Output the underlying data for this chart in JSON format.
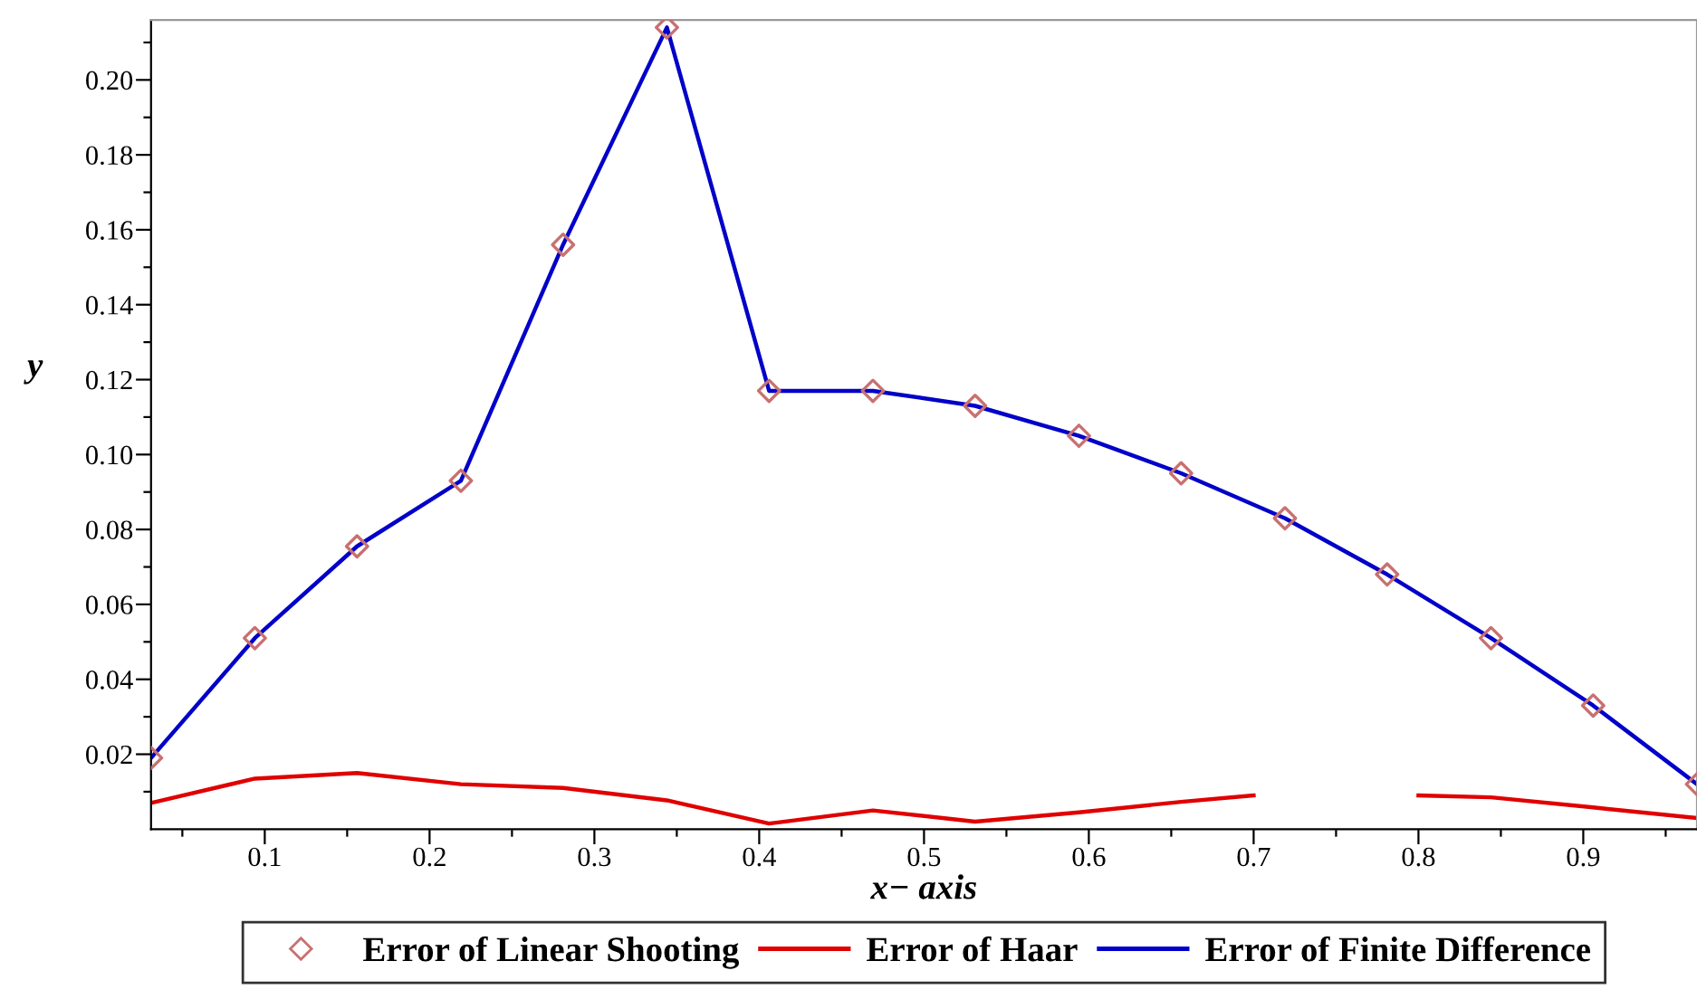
{
  "chart_data": {
    "type": "line",
    "xlabel": "x− axis",
    "ylabel": "y",
    "xlim": [
      0.031,
      0.969
    ],
    "ylim": [
      0,
      0.216
    ],
    "xticks": [
      {
        "value": 0.05,
        "label": null
      },
      0.1,
      {
        "value": 0.15,
        "label": null
      },
      0.2,
      {
        "value": 0.25,
        "label": null
      },
      0.3,
      {
        "value": 0.35,
        "label": null
      },
      0.4,
      {
        "value": 0.45,
        "label": null
      },
      0.5,
      {
        "value": 0.55,
        "label": null
      },
      0.6,
      {
        "value": 0.65,
        "label": null
      },
      0.7,
      {
        "value": 0.75,
        "label": null
      },
      0.8,
      {
        "value": 0.85,
        "label": null
      },
      0.9,
      {
        "value": 0.95,
        "label": null
      }
    ],
    "yticks": [
      {
        "value": 0.01,
        "label": null
      },
      {
        "value": 0.02,
        "label": "0.02"
      },
      {
        "value": 0.03,
        "label": null
      },
      {
        "value": 0.04,
        "label": "0.04"
      },
      {
        "value": 0.05,
        "label": null
      },
      {
        "value": 0.06,
        "label": "0.06"
      },
      {
        "value": 0.07,
        "label": null
      },
      {
        "value": 0.08,
        "label": "0.08"
      },
      {
        "value": 0.09,
        "label": null
      },
      {
        "value": 0.1,
        "label": "0.10"
      },
      {
        "value": 0.11,
        "label": null
      },
      {
        "value": 0.12,
        "label": "0.12"
      },
      {
        "value": 0.13,
        "label": null
      },
      {
        "value": 0.14,
        "label": "0.14"
      },
      {
        "value": 0.15,
        "label": null
      },
      {
        "value": 0.16,
        "label": "0.16"
      },
      {
        "value": 0.17,
        "label": null
      },
      {
        "value": 0.18,
        "label": "0.18"
      },
      {
        "value": 0.19,
        "label": null
      },
      {
        "value": 0.2,
        "label": "0.20"
      },
      {
        "value": 0.21,
        "label": null
      }
    ],
    "grid": false,
    "legend": "bottom",
    "series": [
      {
        "name": "Error of Linear Shooting",
        "type": "scatter",
        "marker": "diamond",
        "color": "#c87070",
        "x": [
          0.031,
          0.094,
          0.156,
          0.219,
          0.281,
          0.344,
          0.406,
          0.469,
          0.531,
          0.594,
          0.656,
          0.719,
          0.781,
          0.844,
          0.906,
          0.969
        ],
        "values": [
          0.019,
          0.051,
          0.0755,
          0.093,
          0.156,
          0.214,
          0.117,
          0.117,
          0.113,
          0.105,
          0.095,
          0.083,
          0.068,
          0.051,
          0.033,
          0.012
        ]
      },
      {
        "name": "Error of Haar",
        "color": "#e00000",
        "line_style": "solid",
        "x": [
          0.031,
          0.094,
          0.156,
          0.219,
          0.281,
          0.344,
          0.406,
          0.469,
          0.531,
          0.594,
          0.656,
          0.7,
          0.75,
          0.8,
          0.844,
          0.906,
          0.969
        ],
        "values": [
          0.007,
          0.0135,
          0.015,
          0.012,
          0.011,
          0.0077,
          0.0015,
          0.005,
          0.002,
          0.0045,
          0.0073,
          0.009,
          null,
          0.009,
          0.0085,
          0.0058,
          0.003
        ]
      },
      {
        "name": "Error of Finite Difference",
        "color": "#0000c8",
        "line_style": "solid",
        "x": [
          0.031,
          0.094,
          0.156,
          0.219,
          0.281,
          0.344,
          0.406,
          0.469,
          0.531,
          0.594,
          0.656,
          0.719,
          0.781,
          0.844,
          0.906,
          0.969
        ],
        "values": [
          0.019,
          0.051,
          0.0755,
          0.093,
          0.156,
          0.214,
          0.117,
          0.117,
          0.113,
          0.105,
          0.095,
          0.083,
          0.068,
          0.051,
          0.033,
          0.012
        ]
      }
    ]
  }
}
